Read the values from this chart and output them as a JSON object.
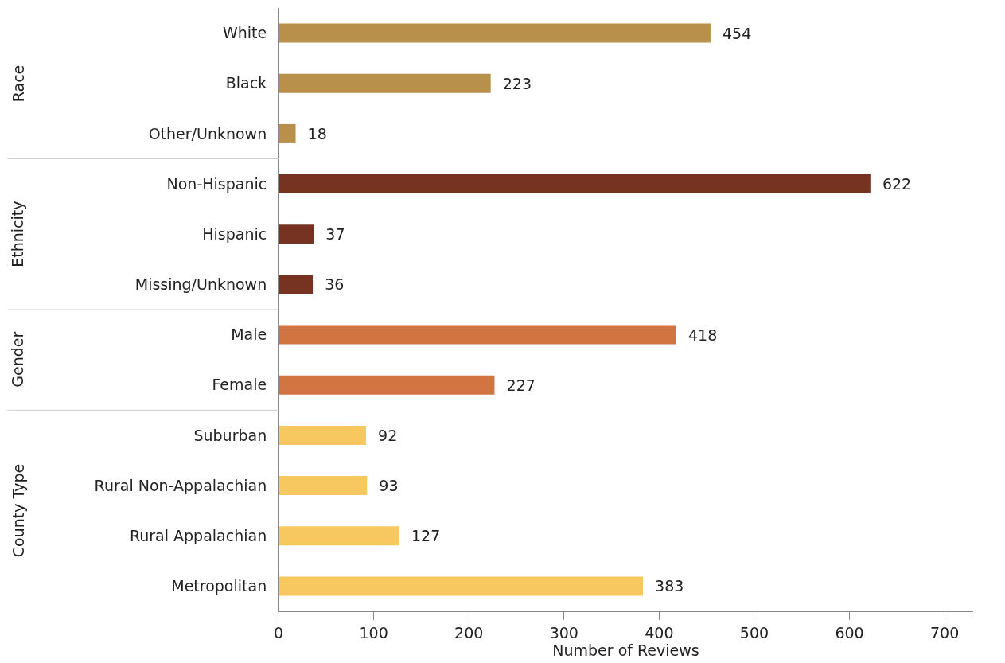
{
  "chart_data": {
    "type": "bar",
    "orientation": "horizontal",
    "xlabel": "Number of Reviews",
    "categories": [
      "White",
      "Black",
      "Other/Unknown",
      "Non-Hispanic",
      "Hispanic",
      "Missing/Unknown",
      "Male",
      "Female",
      "Suburban",
      "Rural Non-Appalachian",
      "Rural Appalachian",
      "Metropolitan"
    ],
    "values": [
      454,
      223,
      18,
      622,
      37,
      36,
      418,
      227,
      92,
      93,
      127,
      383
    ],
    "colors": [
      "#b98f4c",
      "#b98f4c",
      "#b98f4c",
      "#773322",
      "#773322",
      "#773322",
      "#d27342",
      "#d27342",
      "#f6c85f",
      "#f6c85f",
      "#f6c85f",
      "#f6c85f"
    ],
    "annotations": [
      "Race",
      "Ethnicity",
      "Gender",
      "County Type"
    ],
    "xlim": [
      0,
      730
    ],
    "xticks": [
      0,
      100,
      200,
      300,
      400,
      500,
      600,
      700
    ],
    "data_labels": true
  }
}
